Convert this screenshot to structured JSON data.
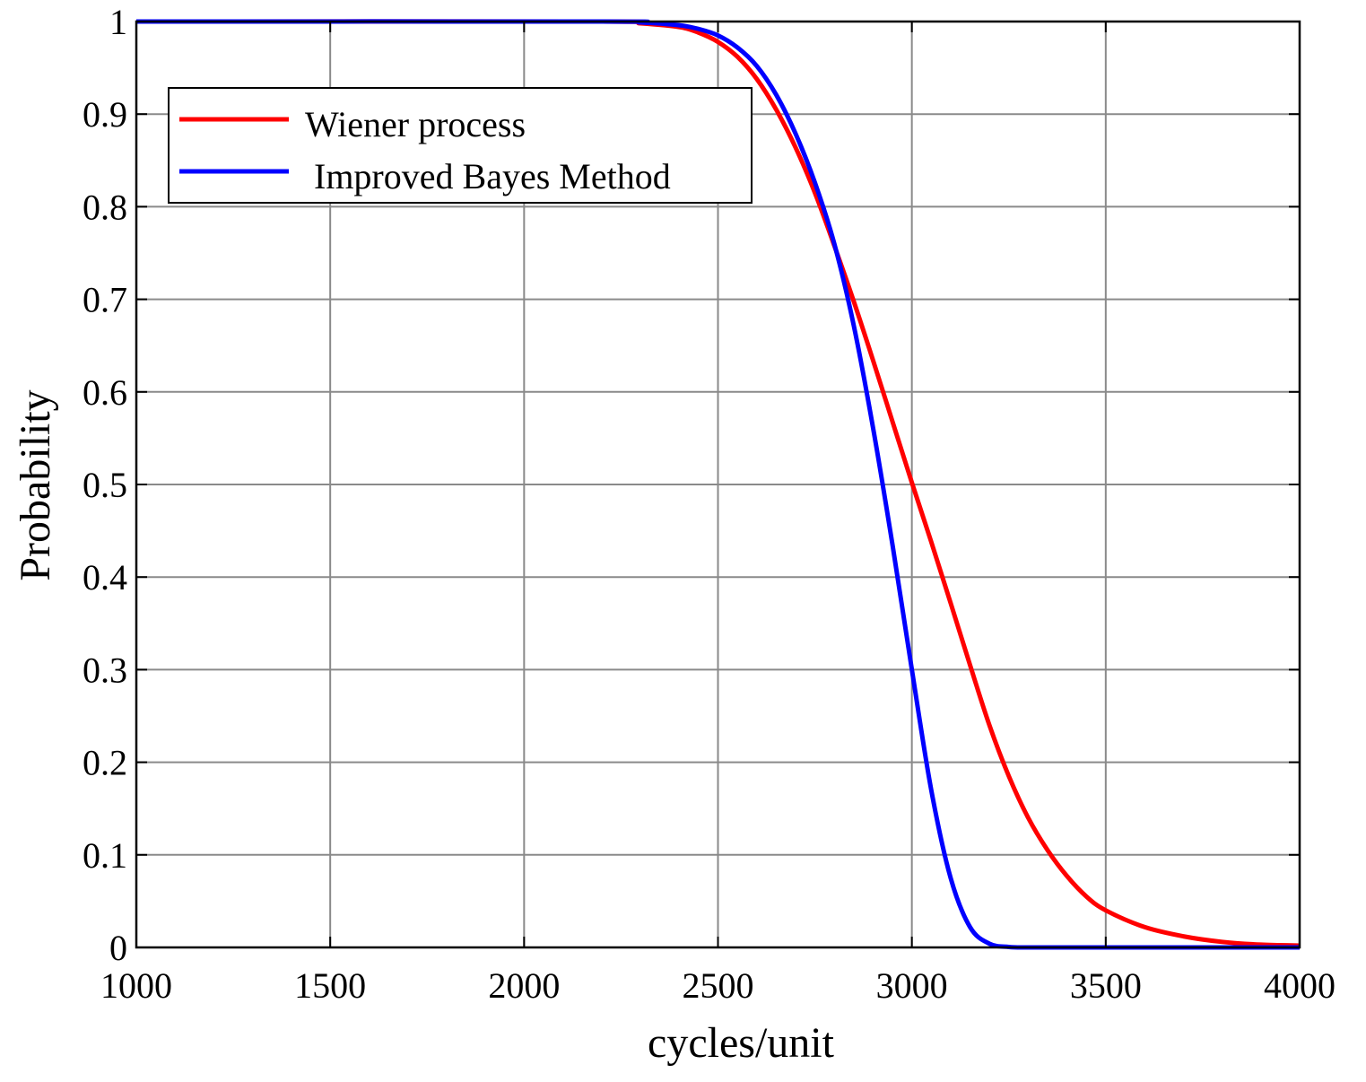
{
  "chart_data": {
    "type": "line",
    "title": "",
    "xlabel": "cycles/unit",
    "ylabel": "Probability",
    "xlim": [
      1000,
      4000
    ],
    "ylim": [
      0,
      1
    ],
    "grid": true,
    "xticks": [
      1000,
      1500,
      2000,
      2500,
      3000,
      3500,
      4000
    ],
    "xtick_labels": [
      "1000",
      "1500",
      "2000",
      "2500",
      "3000",
      "3500",
      "4000"
    ],
    "yticks": [
      0,
      0.1,
      0.2,
      0.3,
      0.4,
      0.5,
      0.6,
      0.7,
      0.8,
      0.9,
      1
    ],
    "ytick_labels": [
      "0",
      "0.1",
      "0.2",
      "0.3",
      "0.4",
      "0.5",
      "0.6",
      "0.7",
      "0.8",
      "0.9",
      "1"
    ],
    "legend_position": "top-left",
    "series": [
      {
        "name": "Wiener process",
        "color": "#ff0000",
        "x": [
          1000,
          2200,
          2300,
          2400,
          2450,
          2500,
          2550,
          2600,
          2650,
          2700,
          2750,
          2800,
          2850,
          2900,
          2950,
          3000,
          3050,
          3100,
          3150,
          3200,
          3250,
          3300,
          3350,
          3400,
          3450,
          3500,
          3600,
          3700,
          3800,
          3900,
          4000
        ],
        "values": [
          1.0,
          1.0,
          0.998,
          0.994,
          0.988,
          0.978,
          0.962,
          0.938,
          0.905,
          0.864,
          0.815,
          0.758,
          0.698,
          0.634,
          0.568,
          0.502,
          0.438,
          0.372,
          0.305,
          0.24,
          0.185,
          0.14,
          0.105,
          0.077,
          0.055,
          0.04,
          0.022,
          0.012,
          0.006,
          0.003,
          0.002
        ]
      },
      {
        "name": "Improved Bayes Method",
        "color": "#0000ff",
        "x": [
          1000,
          2200,
          2300,
          2400,
          2450,
          2500,
          2550,
          2600,
          2650,
          2700,
          2750,
          2800,
          2850,
          2900,
          2950,
          3000,
          3050,
          3100,
          3150,
          3200,
          3250,
          3300,
          3400,
          3600,
          3800,
          4000
        ],
        "values": [
          1.0,
          1.0,
          0.999,
          0.996,
          0.992,
          0.985,
          0.972,
          0.952,
          0.921,
          0.879,
          0.826,
          0.76,
          0.672,
          0.561,
          0.435,
          0.3,
          0.17,
          0.075,
          0.022,
          0.004,
          0.0005,
          0.0,
          0.0,
          0.0,
          0.0,
          0.0
        ]
      }
    ]
  }
}
